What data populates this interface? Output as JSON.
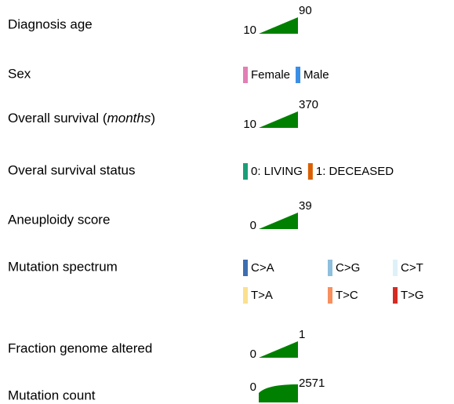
{
  "legend": [
    {
      "label": "Diagnosis age",
      "type": "numeric",
      "min": 10,
      "max": 90
    },
    {
      "label": "Sex",
      "type": "categorical",
      "items": [
        {
          "name": "Female",
          "color": "#e27fb4"
        },
        {
          "name": "Male",
          "color": "#3a8ee6"
        }
      ]
    },
    {
      "label_parts": [
        {
          "text": "Overall survival ("
        },
        {
          "text": "months",
          "italic": true
        },
        {
          "text": ")"
        }
      ],
      "type": "numeric",
      "min": 10,
      "max": 370
    },
    {
      "label": "Overal survival status",
      "type": "categorical",
      "items": [
        {
          "name": "0: LIVING",
          "color": "#1b9e77"
        },
        {
          "name": "1: DECEASED",
          "color": "#d95f02"
        }
      ]
    },
    {
      "label": "Aneuploidy score",
      "type": "numeric",
      "min": 0,
      "max": 39
    },
    {
      "label": "Mutation spectrum",
      "type": "categorical",
      "items": [
        {
          "name": "C>A",
          "color": "#3d6eb1"
        },
        {
          "name": "C>G",
          "color": "#8ebfdc"
        },
        {
          "name": "C>T",
          "color": "#dff1f8"
        },
        {
          "name": "T>A",
          "color": "#fce08e"
        },
        {
          "name": "T>C",
          "color": "#f78f5e"
        },
        {
          "name": "T>G",
          "color": "#d62b23"
        }
      ]
    },
    {
      "label": "Fraction genome altered",
      "type": "numeric",
      "min": 0,
      "max": 1
    },
    {
      "label": "Mutation count",
      "type": "numeric",
      "scale": "log",
      "min": 0,
      "max": 2571
    }
  ]
}
